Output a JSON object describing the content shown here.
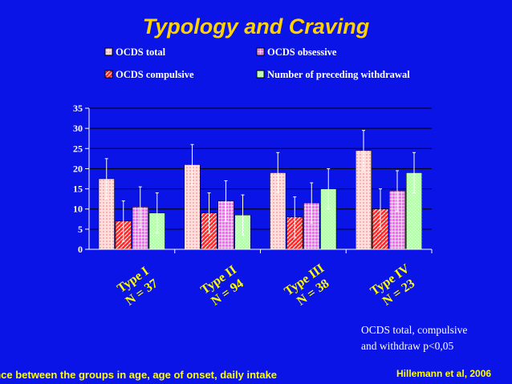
{
  "title": "Typology and Craving",
  "note_line1": "OCDS total, compulsive",
  "note_line2": "and withdraw p<0,05",
  "footer_left": "ence between the groups in age, age of onset, daily intake",
  "footer_right": "Hillemann et al, 2006",
  "chart_data": {
    "type": "bar",
    "title": "Typology and Craving",
    "categories": [
      "Type I|N = 37",
      "Type II|N = 94",
      "Type III|N = 38",
      "Type IV|N = 23"
    ],
    "ylim": [
      0,
      35
    ],
    "yticks": [
      0,
      5,
      10,
      15,
      20,
      25,
      30,
      35
    ],
    "grid": true,
    "legend_position": "top",
    "series": [
      {
        "name": "OCDS total",
        "color": "#ffe4e4",
        "values": [
          17.5,
          21,
          19,
          24.5
        ],
        "errors": [
          5,
          5,
          5,
          5
        ]
      },
      {
        "name": "OCDS compulsive",
        "color": "#ff3333",
        "values": [
          7,
          9,
          8,
          10
        ],
        "errors": [
          5,
          5,
          5,
          5
        ]
      },
      {
        "name": "OCDS obsessive",
        "color": "#ff66ff",
        "values": [
          10.5,
          12,
          11.5,
          14.5
        ],
        "errors": [
          5,
          5,
          5,
          5
        ]
      },
      {
        "name": "Number of preceding withdrawal",
        "color": "#b8ffb0",
        "values": [
          9,
          8.5,
          15,
          19
        ],
        "errors": [
          5,
          5,
          5,
          5
        ]
      }
    ],
    "legend_order": [
      "OCDS total",
      "OCDS obsessive",
      "OCDS compulsive",
      "Number of preceding withdrawal"
    ]
  }
}
